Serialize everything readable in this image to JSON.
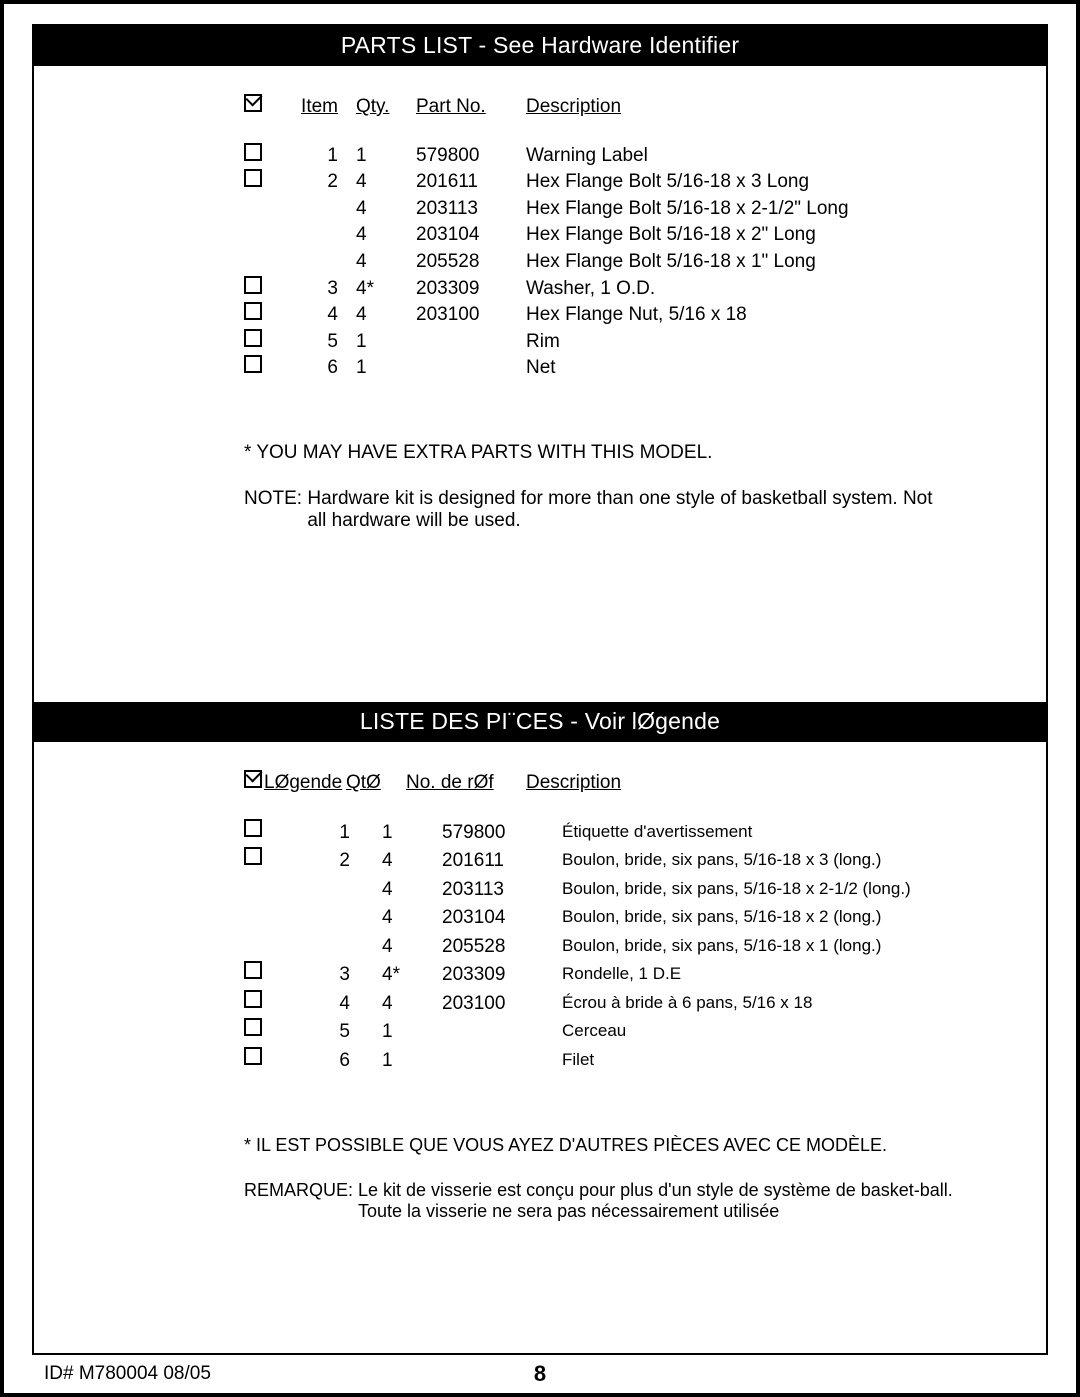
{
  "header_en": "PARTS LIST - See Hardware Identifier",
  "header_fr": "LISTE DES PI¨CES - Voir lØgende",
  "cols_en": {
    "item": "Item",
    "qty": "Qty.",
    "part": "Part No.",
    "desc": "Description "
  },
  "cols_fr": {
    "item": "LØgende",
    "qty": "QtØ",
    "part": "No. de rØf",
    "desc": "Description "
  },
  "rows_en": [
    {
      "box": true,
      "item": "1",
      "qty": "1",
      "part": "579800",
      "desc": "Warning Label"
    },
    {
      "box": true,
      "item": "2",
      "qty": "4",
      "part": "201611",
      "desc": "Hex Flange Bolt 5/16-18 x 3 Long"
    },
    {
      "box": false,
      "item": "",
      "qty": "4",
      "part": "203113",
      "desc": "Hex Flange Bolt 5/16-18 x 2-1/2\" Long"
    },
    {
      "box": false,
      "item": "",
      "qty": "4",
      "part": "203104",
      "desc": "Hex Flange Bolt 5/16-18 x 2\" Long"
    },
    {
      "box": false,
      "item": "",
      "qty": "4",
      "part": "205528",
      "desc": "Hex Flange Bolt 5/16-18 x 1\" Long"
    },
    {
      "box": true,
      "item": "3",
      "qty": "4*",
      "part": "203309",
      "desc": "Washer, 1 O.D."
    },
    {
      "box": true,
      "item": "4",
      "qty": "4",
      "part": "203100",
      "desc": "Hex Flange Nut, 5/16 x 18"
    },
    {
      "box": true,
      "item": "5",
      "qty": "1",
      "part": "",
      "desc": "Rim"
    },
    {
      "box": true,
      "item": "6",
      "qty": "1",
      "part": "",
      "desc": "Net"
    }
  ],
  "rows_fr": [
    {
      "box": true,
      "item": "1",
      "qty": "1",
      "part": "579800",
      "desc": "Étiquette d'avertissement"
    },
    {
      "box": true,
      "item": "2",
      "qty": "4",
      "part": "201611",
      "desc": "Boulon, bride, six pans, 5/16-18 x 3 (long.)"
    },
    {
      "box": false,
      "item": "",
      "qty": "4",
      "part": "203113",
      "desc": "Boulon, bride, six pans, 5/16-18 x 2-1/2 (long.)"
    },
    {
      "box": false,
      "item": "",
      "qty": "4",
      "part": "203104",
      "desc": "Boulon, bride, six pans, 5/16-18 x 2 (long.)"
    },
    {
      "box": false,
      "item": "",
      "qty": "4",
      "part": "205528",
      "desc": "Boulon, bride, six pans, 5/16-18 x 1 (long.)"
    },
    {
      "box": true,
      "item": "3",
      "qty": "4*",
      "part": "203309",
      "desc": "Rondelle, 1 D.E"
    },
    {
      "box": true,
      "item": "4",
      "qty": "4",
      "part": "203100",
      "desc": "Écrou à bride à 6 pans, 5/16 x 18"
    },
    {
      "box": true,
      "item": "5",
      "qty": "1",
      "part": "",
      "desc": "Cerceau"
    },
    {
      "box": true,
      "item": "6",
      "qty": "1",
      "part": "",
      "desc": "Filet"
    }
  ],
  "footnote_en": "*  YOU MAY HAVE EXTRA PARTS WITH THIS MODEL.",
  "note_en_label": "NOTE: ",
  "note_en_body": "Hardware kit is designed for more than one style of basketball system.  Not all hardware will be used.",
  "footnote_fr": "*  IL EST POSSIBLE QUE VOUS AYEZ D'AUTRES PIÈCES AVEC CE MODÈLE.",
  "note_fr_label": "REMARQUE: ",
  "note_fr_body": "Le kit de visserie est conçu pour plus d'un style de système de basket-ball. Toute la visserie ne sera pas nécessairement utilisée",
  "doc_id": "ID#  M780004   08/05",
  "page_num": "8"
}
